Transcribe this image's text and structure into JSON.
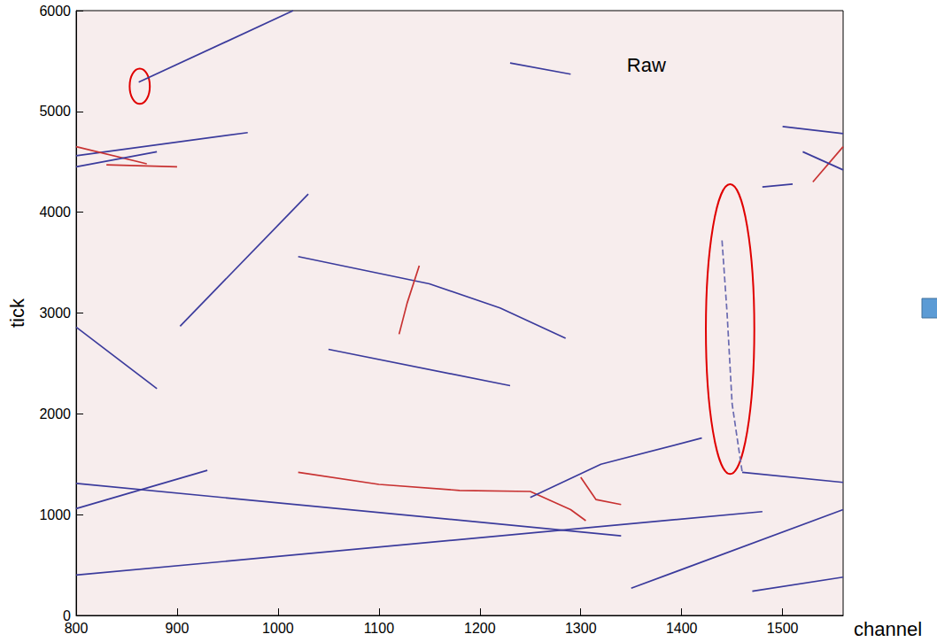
{
  "chart_data": {
    "type": "line",
    "x_label": "channel",
    "y_label": "tick",
    "xlim": [
      800,
      1560
    ],
    "ylim": [
      0,
      6000
    ],
    "xticks": [
      800,
      900,
      1000,
      1100,
      1200,
      1300,
      1400,
      1500
    ],
    "yticks": [
      0,
      1000,
      2000,
      3000,
      4000,
      5000,
      6000
    ],
    "grid": false,
    "annotations": [
      {
        "text": "Raw",
        "x": 1365,
        "y": 5460
      }
    ],
    "highlights": [
      {
        "x": 863,
        "y": 5250,
        "dx": 10,
        "dy": 175,
        "color": "#e00000"
      },
      {
        "x": 1448,
        "y": 2840,
        "dx": 24,
        "dy": 1440,
        "color": "#e00000"
      }
    ],
    "series": [
      {
        "color": "#3b3b9c",
        "values": [
          [
            862,
            5290
          ],
          [
            1015,
            6000
          ]
        ]
      },
      {
        "color": "#3b3b9c",
        "values": [
          [
            800,
            4560
          ],
          [
            970,
            4790
          ]
        ]
      },
      {
        "color": "#c83232",
        "values": [
          [
            800,
            4650
          ],
          [
            870,
            4480
          ]
        ]
      },
      {
        "color": "#3b3b9c",
        "values": [
          [
            800,
            4450
          ],
          [
            880,
            4600
          ]
        ]
      },
      {
        "color": "#c83232",
        "values": [
          [
            830,
            4470
          ],
          [
            900,
            4450
          ]
        ]
      },
      {
        "color": "#3b3b9c",
        "values": [
          [
            903,
            2870
          ],
          [
            1030,
            4180
          ]
        ]
      },
      {
        "color": "#3b3b9c",
        "values": [
          [
            800,
            2860
          ],
          [
            880,
            2250
          ]
        ]
      },
      {
        "color": "#3b3b9c",
        "values": [
          [
            1020,
            3560
          ],
          [
            1150,
            3290
          ],
          [
            1220,
            3050
          ],
          [
            1285,
            2750
          ]
        ]
      },
      {
        "color": "#c83232",
        "values": [
          [
            1120,
            2790
          ],
          [
            1128,
            3100
          ],
          [
            1140,
            3470
          ]
        ]
      },
      {
        "color": "#3b3b9c",
        "values": [
          [
            1050,
            2640
          ],
          [
            1230,
            2280
          ]
        ]
      },
      {
        "color": "#3b3b9c",
        "values": [
          [
            800,
            1060
          ],
          [
            930,
            1440
          ]
        ]
      },
      {
        "color": "#3b3b9c",
        "values": [
          [
            800,
            1310
          ],
          [
            1340,
            790
          ]
        ]
      },
      {
        "color": "#c83232",
        "values": [
          [
            1020,
            1420
          ],
          [
            1100,
            1300
          ],
          [
            1180,
            1240
          ],
          [
            1250,
            1230
          ],
          [
            1290,
            1050
          ],
          [
            1305,
            940
          ]
        ]
      },
      {
        "color": "#3b3b9c",
        "values": [
          [
            1250,
            1170
          ],
          [
            1320,
            1500
          ],
          [
            1420,
            1760
          ]
        ]
      },
      {
        "color": "#c83232",
        "values": [
          [
            1300,
            1370
          ],
          [
            1315,
            1150
          ],
          [
            1340,
            1100
          ]
        ]
      },
      {
        "color": "#3b3b9c",
        "values": [
          [
            800,
            400
          ],
          [
            1480,
            1030
          ]
        ]
      },
      {
        "color": "#3b3b9c",
        "values": [
          [
            1350,
            270
          ],
          [
            1560,
            1050
          ]
        ]
      },
      {
        "color": "#3b3b9c",
        "values": [
          [
            1460,
            1420
          ],
          [
            1560,
            1320
          ]
        ]
      },
      {
        "color": "#6a6ab0",
        "line_style": "dashed",
        "values": [
          [
            1440,
            3720
          ],
          [
            1445,
            3000
          ],
          [
            1450,
            2100
          ],
          [
            1460,
            1420
          ]
        ]
      },
      {
        "color": "#3b3b9c",
        "values": [
          [
            1230,
            5480
          ],
          [
            1290,
            5370
          ]
        ]
      },
      {
        "color": "#3b3b9c",
        "values": [
          [
            1470,
            240
          ],
          [
            1560,
            380
          ]
        ]
      },
      {
        "color": "#3b3b9c",
        "values": [
          [
            1500,
            4850
          ],
          [
            1560,
            4780
          ]
        ]
      },
      {
        "color": "#c83232",
        "values": [
          [
            1530,
            4300
          ],
          [
            1560,
            4650
          ]
        ]
      },
      {
        "color": "#3b3b9c",
        "values": [
          [
            1520,
            4600
          ],
          [
            1560,
            4420
          ]
        ]
      },
      {
        "color": "#3b3b9c",
        "values": [
          [
            1480,
            4250
          ],
          [
            1510,
            4280
          ]
        ]
      }
    ]
  }
}
